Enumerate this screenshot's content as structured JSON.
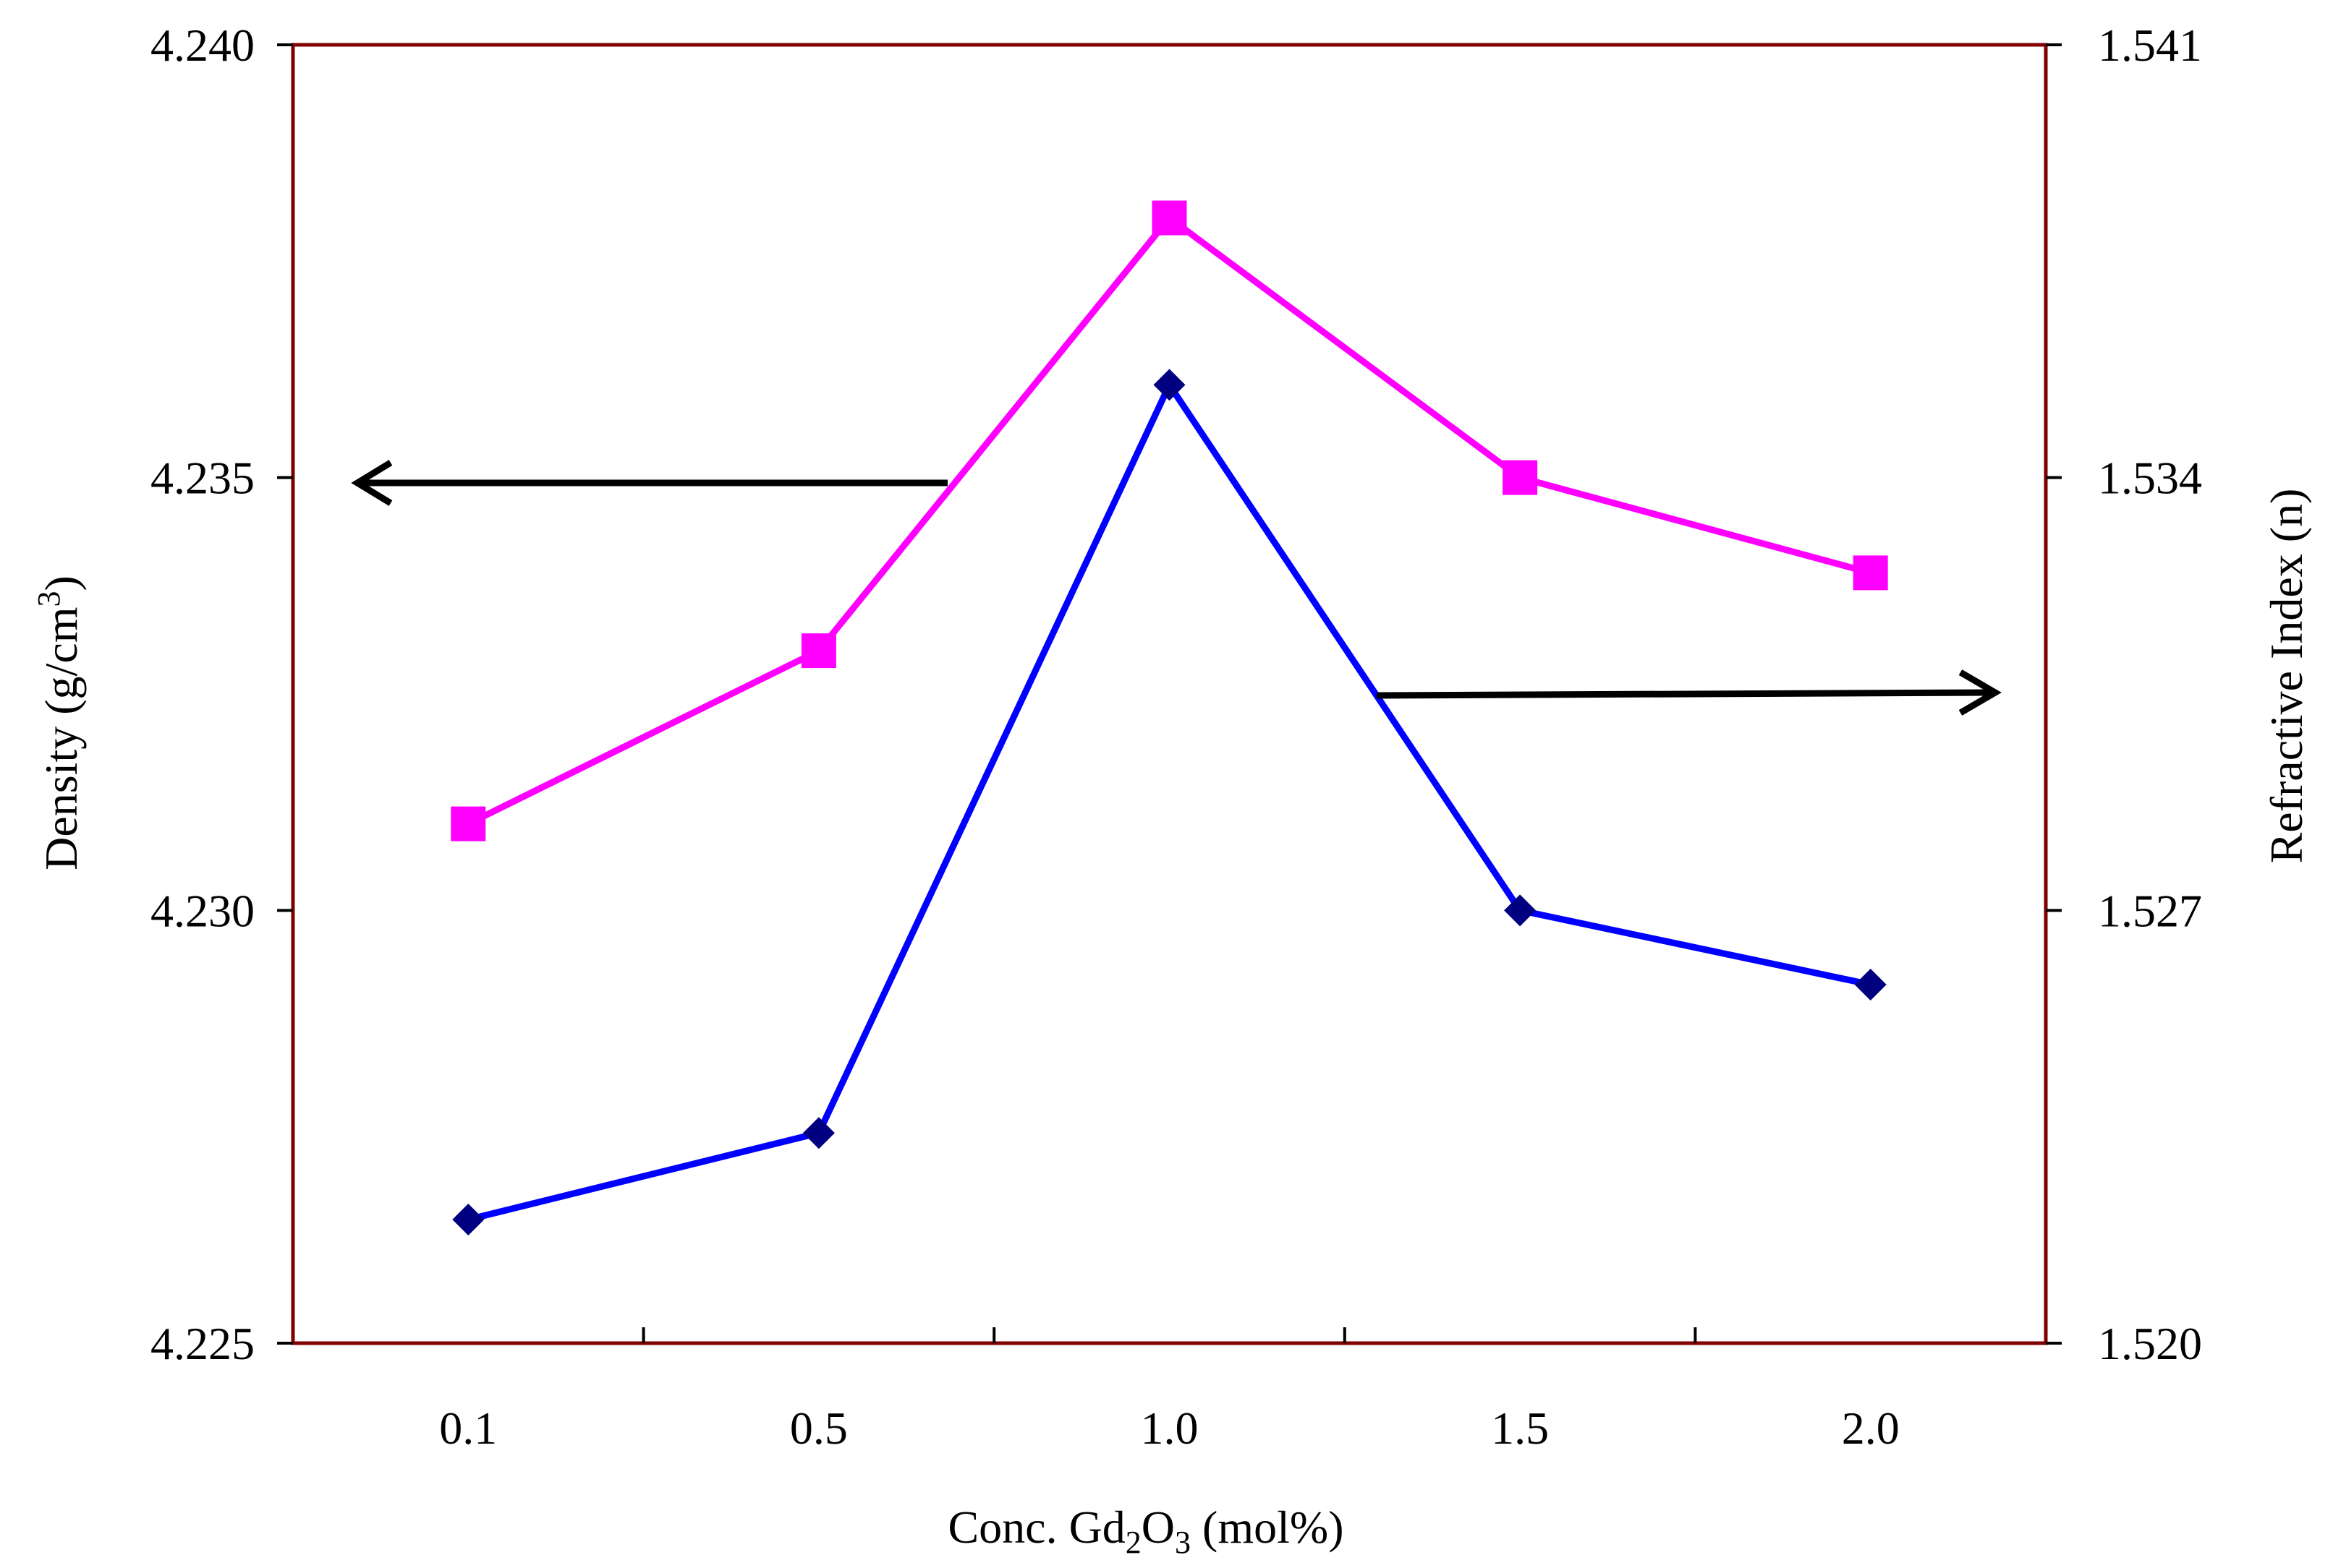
{
  "chart_data": {
    "type": "line",
    "title": "",
    "categories": [
      "0.1",
      "0.5",
      "1.0",
      "1.5",
      "2.0"
    ],
    "xlabel": {
      "prefix": "Conc. Gd",
      "sub1": "2",
      "mid": "O",
      "sub2": "3",
      "suffix": " (mol%)"
    },
    "ylabel_left": {
      "prefix": "Density (g/cm",
      "sup": "3",
      "suffix": ")"
    },
    "ylabel_right": "Refractive Index (n)",
    "y_left": {
      "min": 4.225,
      "max": 4.24,
      "ticks": [
        4.225,
        4.23,
        4.235,
        4.24
      ],
      "tick_labels": [
        "4.225",
        "4.230",
        "4.235",
        "4.240"
      ]
    },
    "y_right": {
      "min": 1.52,
      "max": 1.541,
      "ticks": [
        1.52,
        1.527,
        1.534,
        1.541
      ],
      "tick_labels": [
        "1.520",
        "1.527",
        "1.534",
        "1.541"
      ]
    },
    "series": [
      {
        "name": "Density",
        "axis": "left",
        "marker": "square",
        "color": "#ff00ff",
        "values": [
          4.231,
          4.233,
          4.238,
          4.235,
          4.2339
        ]
      },
      {
        "name": "Refractive Index",
        "axis": "right",
        "marker": "diamond",
        "color": "#0000ff",
        "marker_color": "#000080",
        "values": [
          1.522,
          1.5234,
          1.5355,
          1.527,
          1.5258
        ]
      }
    ],
    "annotations": [
      {
        "type": "arrow",
        "direction": "left",
        "points_to": "left axis (Density)"
      },
      {
        "type": "arrow",
        "direction": "right",
        "points_to": "right axis (Refractive Index)"
      }
    ],
    "frame_color": "#800000",
    "grid": false,
    "legend": "none"
  }
}
